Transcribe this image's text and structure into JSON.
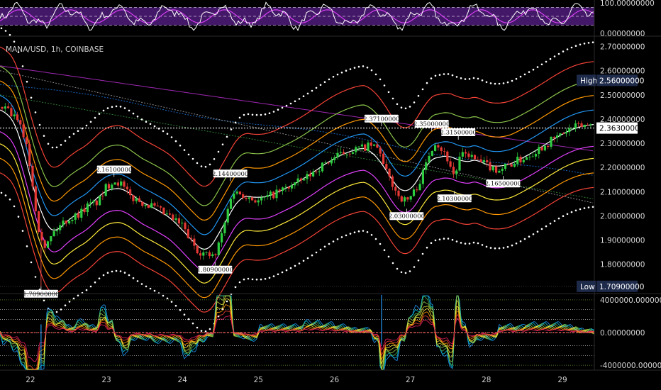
{
  "chart_data": {
    "type": "candlestick",
    "symbol_label": "MANA/USD, 1h, COINBASE",
    "price_axis": {
      "ylim": [
        1.685,
        2.725
      ],
      "ticks": [
        "2.70000000",
        "2.60000000",
        "2.50000000",
        "2.40000000",
        "2.30000000",
        "2.20000000",
        "2.10000000",
        "2.00000000",
        "1.90000000",
        "1.80000000"
      ],
      "tick_values": [
        2.7,
        2.6,
        2.5,
        2.4,
        2.3,
        2.2,
        2.1,
        2.0,
        1.9,
        1.8
      ]
    },
    "x_axis": {
      "range": [
        21.6,
        29.42
      ],
      "labels": [
        "22",
        "23",
        "24",
        "25",
        "26",
        "27",
        "28",
        "29"
      ],
      "label_values": [
        22,
        23,
        24,
        25,
        26,
        27,
        28,
        29
      ]
    },
    "current_price": {
      "value": 2.363,
      "label": "2.36300000"
    },
    "high": {
      "label": "High",
      "value": 2.56,
      "value_label": "2.56000000"
    },
    "low": {
      "label": "Low",
      "value": 1.709,
      "value_label": "1.70900000"
    },
    "annotations": [
      {
        "text": "1.70900000",
        "x": 22.14,
        "y": 1.709,
        "pos": "below"
      },
      {
        "text": "2.16100000",
        "x": 23.1,
        "y": 2.161,
        "pos": "above"
      },
      {
        "text": "1.80900000",
        "x": 24.43,
        "y": 1.809,
        "pos": "below"
      },
      {
        "text": "2.14400000",
        "x": 24.63,
        "y": 2.144,
        "pos": "above"
      },
      {
        "text": "2.37100000",
        "x": 26.62,
        "y": 2.371,
        "pos": "above"
      },
      {
        "text": "2.03000000",
        "x": 26.95,
        "y": 2.03,
        "pos": "below"
      },
      {
        "text": "2.35000000",
        "x": 27.28,
        "y": 2.35,
        "pos": "above"
      },
      {
        "text": "2.31500000",
        "x": 27.63,
        "y": 2.315,
        "pos": "above"
      },
      {
        "text": "2.10300000",
        "x": 27.58,
        "y": 2.103,
        "pos": "below"
      },
      {
        "text": "2.16500000",
        "x": 28.22,
        "y": 2.165,
        "pos": "below"
      }
    ],
    "close_series": {
      "x": [
        21.62,
        21.75,
        21.85,
        21.95,
        22.02,
        22.1,
        22.2,
        22.3,
        22.45,
        22.6,
        22.75,
        22.9,
        23.0,
        23.1,
        23.2,
        23.3,
        23.45,
        23.6,
        23.8,
        24.0,
        24.1,
        24.2,
        24.3,
        24.43,
        24.55,
        24.65,
        24.8,
        25.0,
        25.2,
        25.4,
        25.6,
        25.8,
        26.0,
        26.2,
        26.35,
        26.5,
        26.6,
        26.65,
        26.75,
        26.85,
        26.95,
        27.05,
        27.15,
        27.25,
        27.32,
        27.4,
        27.5,
        27.58,
        27.65,
        27.75,
        27.85,
        28.0,
        28.15,
        28.22,
        28.35,
        28.5,
        28.7,
        28.9,
        29.05,
        29.2,
        29.4
      ],
      "y": [
        2.45,
        2.42,
        2.38,
        2.3,
        2.15,
        1.96,
        1.87,
        1.93,
        1.98,
        2.0,
        2.04,
        2.06,
        2.12,
        2.15,
        2.13,
        2.08,
        2.06,
        2.04,
        2.0,
        1.96,
        1.9,
        1.86,
        1.84,
        1.83,
        1.96,
        2.1,
        2.09,
        2.06,
        2.09,
        2.12,
        2.15,
        2.2,
        2.24,
        2.27,
        2.28,
        2.29,
        2.27,
        2.2,
        2.14,
        2.08,
        2.06,
        2.1,
        2.16,
        2.26,
        2.31,
        2.28,
        2.23,
        2.16,
        2.24,
        2.26,
        2.23,
        2.21,
        2.19,
        2.2,
        2.22,
        2.24,
        2.28,
        2.32,
        2.35,
        2.37,
        2.38
      ]
    },
    "oscillator_top": {
      "ylim": [
        0,
        100
      ],
      "ticks": [
        "100.00000000",
        "0.00000000"
      ],
      "tick_values": [
        100,
        0
      ]
    },
    "oscillator_bottom": {
      "ylim": [
        -4600000,
        4600000
      ],
      "ticks": [
        "4000000.00000000",
        "0.00000000",
        "-4000000.00000000"
      ],
      "tick_values": [
        4000000,
        0,
        -4000000
      ]
    }
  }
}
